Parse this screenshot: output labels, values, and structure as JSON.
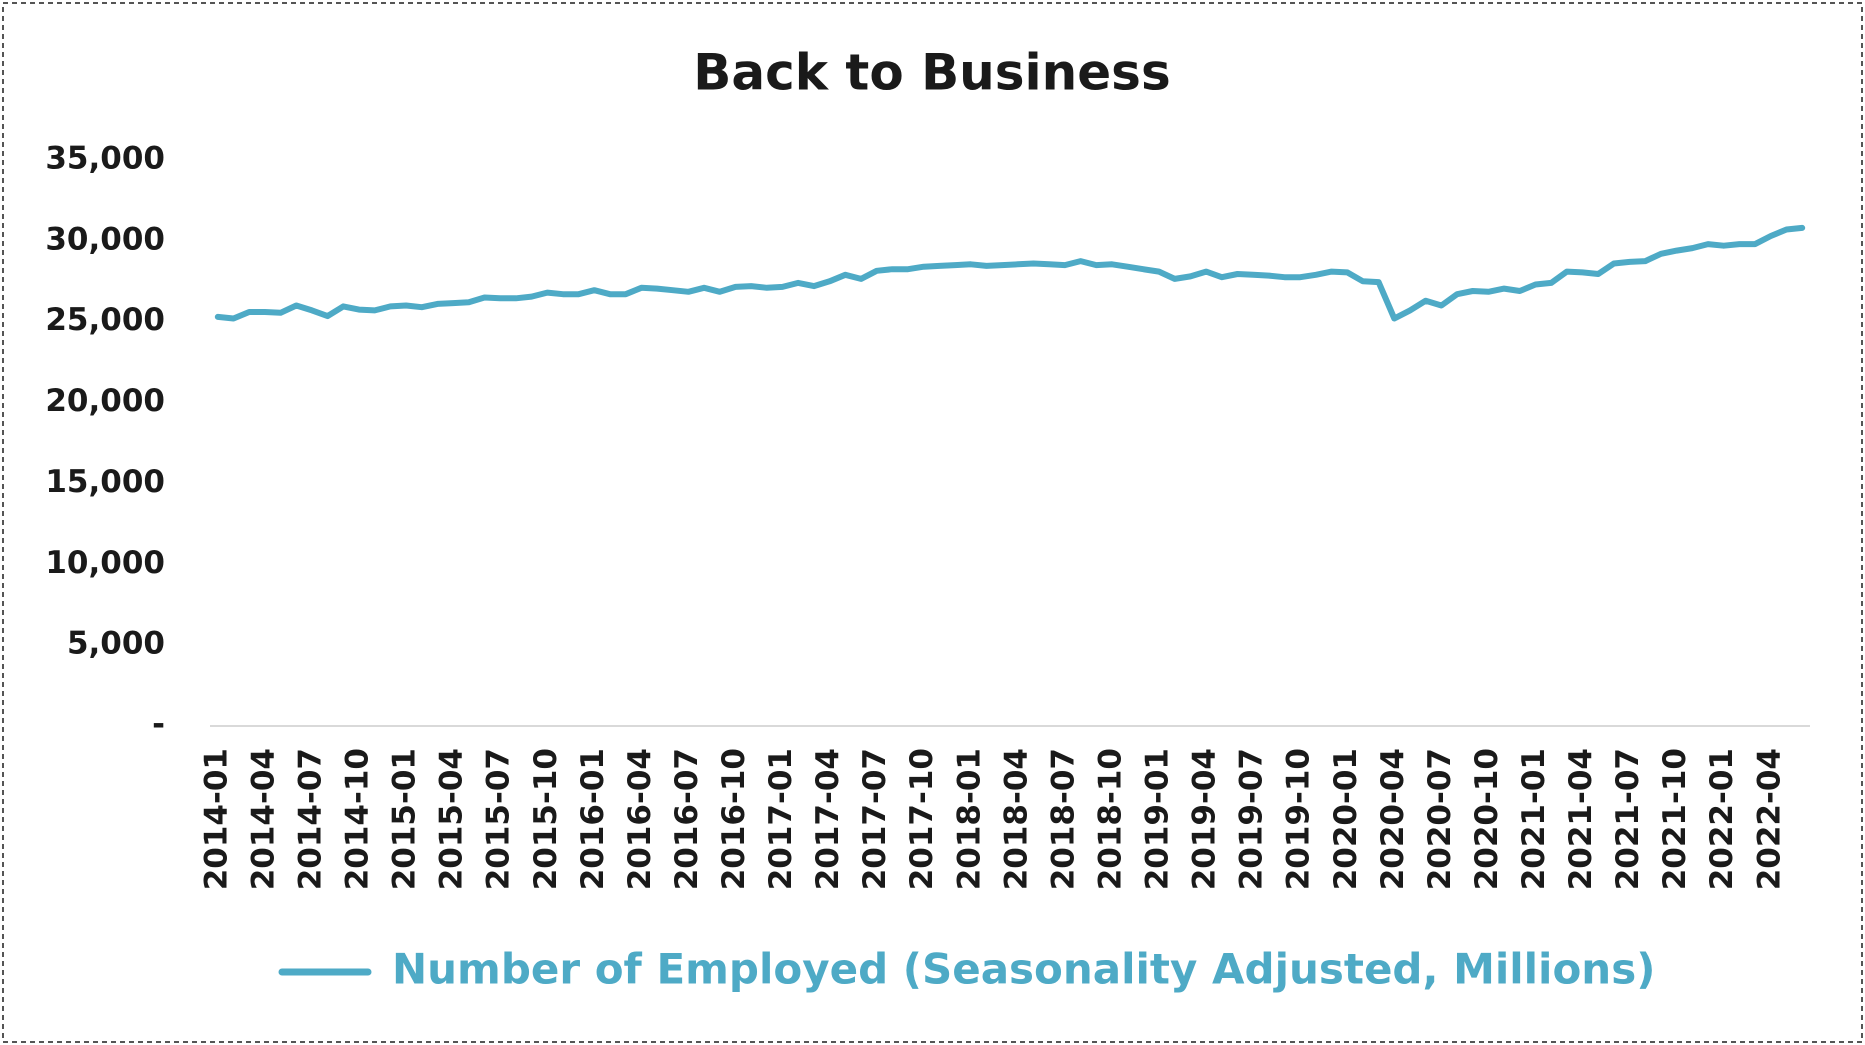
{
  "chart_data": {
    "type": "line",
    "title": "Back to Business",
    "categories": [
      "2014-01",
      null,
      null,
      "2014-04",
      null,
      null,
      "2014-07",
      null,
      null,
      "2014-10",
      null,
      null,
      "2015-01",
      null,
      null,
      "2015-04",
      null,
      null,
      "2015-07",
      null,
      null,
      "2015-10",
      null,
      null,
      "2016-01",
      null,
      null,
      "2016-04",
      null,
      null,
      "2016-07",
      null,
      null,
      "2016-10",
      null,
      null,
      "2017-01",
      null,
      null,
      "2017-04",
      null,
      null,
      "2017-07",
      null,
      null,
      "2017-10",
      null,
      null,
      "2018-01",
      null,
      null,
      "2018-04",
      null,
      null,
      "2018-07",
      null,
      null,
      "2018-10",
      null,
      null,
      "2019-01",
      null,
      null,
      "2019-04",
      null,
      null,
      "2019-07",
      null,
      null,
      "2019-10",
      null,
      null,
      "2020-01",
      null,
      null,
      "2020-04",
      null,
      null,
      "2020-07",
      null,
      null,
      "2020-10",
      null,
      null,
      "2021-01",
      null,
      null,
      "2021-04",
      null,
      null,
      "2021-07",
      null,
      null,
      "2021-10",
      null,
      null,
      "2022-01",
      null,
      null,
      "2022-04",
      null,
      null
    ],
    "series": [
      {
        "name": "Number of Employed (Seasonality Adjusted, Millions)",
        "color": "#4eaac6",
        "values": [
          25300,
          25200,
          25600,
          25600,
          25550,
          26000,
          25700,
          25350,
          25950,
          25750,
          25700,
          25950,
          26000,
          25900,
          26100,
          26150,
          26200,
          26500,
          26450,
          26450,
          26550,
          26800,
          26700,
          26700,
          26950,
          26700,
          26700,
          27100,
          27050,
          26950,
          26850,
          27100,
          26850,
          27150,
          27200,
          27100,
          27150,
          27400,
          27200,
          27500,
          27900,
          27650,
          28150,
          28250,
          28250,
          28400,
          28450,
          28500,
          28550,
          28450,
          28500,
          28550,
          28600,
          28550,
          28500,
          28750,
          28500,
          28550,
          28400,
          28250,
          28100,
          27650,
          27800,
          28100,
          27750,
          27950,
          27900,
          27850,
          27750,
          27750,
          27900,
          28100,
          28050,
          27500,
          27450,
          25200,
          25700,
          26300,
          26000,
          26700,
          26900,
          26850,
          27050,
          26900,
          27300,
          27400,
          28100,
          28050,
          27950,
          28600,
          28700,
          28750,
          29200,
          29400,
          29550,
          29800,
          29700,
          29800,
          29800,
          30300,
          30700,
          30800
        ]
      }
    ],
    "ylim": [
      0,
      35000
    ],
    "yticks": [
      {
        "value": 0,
        "label": "-"
      },
      {
        "value": 5000,
        "label": "5,000"
      },
      {
        "value": 10000,
        "label": "10,000"
      },
      {
        "value": 15000,
        "label": "15,000"
      },
      {
        "value": 20000,
        "label": "20,000"
      },
      {
        "value": 25000,
        "label": "25,000"
      },
      {
        "value": 30000,
        "label": "30,000"
      },
      {
        "value": 35000,
        "label": "35,000"
      }
    ],
    "grid": false
  }
}
